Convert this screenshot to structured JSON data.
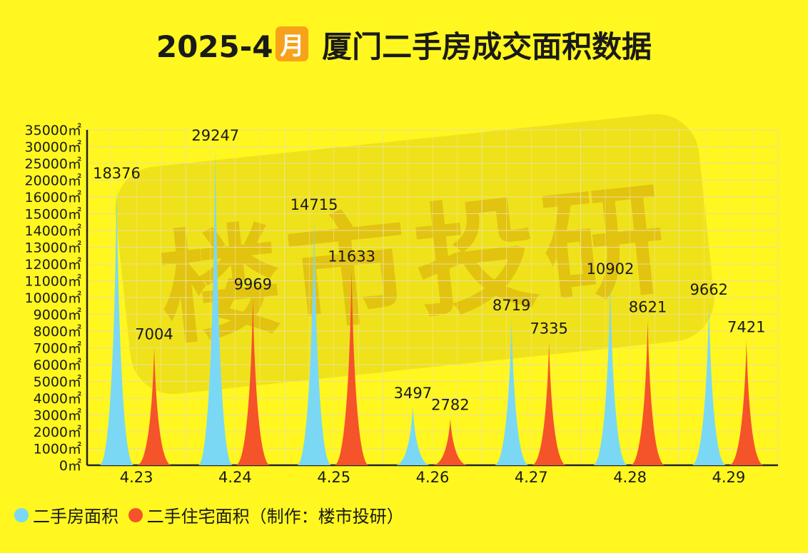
{
  "title": {
    "prefix": "2025-4",
    "badge": "月",
    "suffix": "厦门二手房成交面积数据"
  },
  "watermark": "楼市投研",
  "legend": [
    {
      "label": "二手房面积",
      "color": "#7AD8F5"
    },
    {
      "label": "二手住宅面积（制作：楼市投研）",
      "color": "#F5532A"
    }
  ],
  "chart_data": {
    "type": "area",
    "categories": [
      "4.23",
      "4.24",
      "4.25",
      "4.26",
      "4.27",
      "4.28",
      "4.29"
    ],
    "y_ticks": [
      "0㎡",
      "1000㎡",
      "2000㎡",
      "3000㎡",
      "4000㎡",
      "5000㎡",
      "6000㎡",
      "7000㎡",
      "8000㎡",
      "9000㎡",
      "10000㎡",
      "11000㎡",
      "12000㎡",
      "13000㎡",
      "14000㎡",
      "15000㎡",
      "16000㎡",
      "20000㎡",
      "25000㎡",
      "30000㎡",
      "35000㎡"
    ],
    "y_tick_values": [
      0,
      1000,
      2000,
      3000,
      4000,
      5000,
      6000,
      7000,
      8000,
      9000,
      10000,
      11000,
      12000,
      13000,
      14000,
      15000,
      16000,
      20000,
      25000,
      30000,
      35000
    ],
    "series": [
      {
        "name": "二手房面积",
        "color": "#7AD8F5",
        "values": [
          18376,
          29247,
          14715,
          3497,
          8719,
          10902,
          9662
        ]
      },
      {
        "name": "二手住宅面积",
        "color": "#F5532A",
        "values": [
          7004,
          9969,
          11633,
          2782,
          7335,
          8621,
          7421
        ]
      }
    ],
    "grid": true
  }
}
